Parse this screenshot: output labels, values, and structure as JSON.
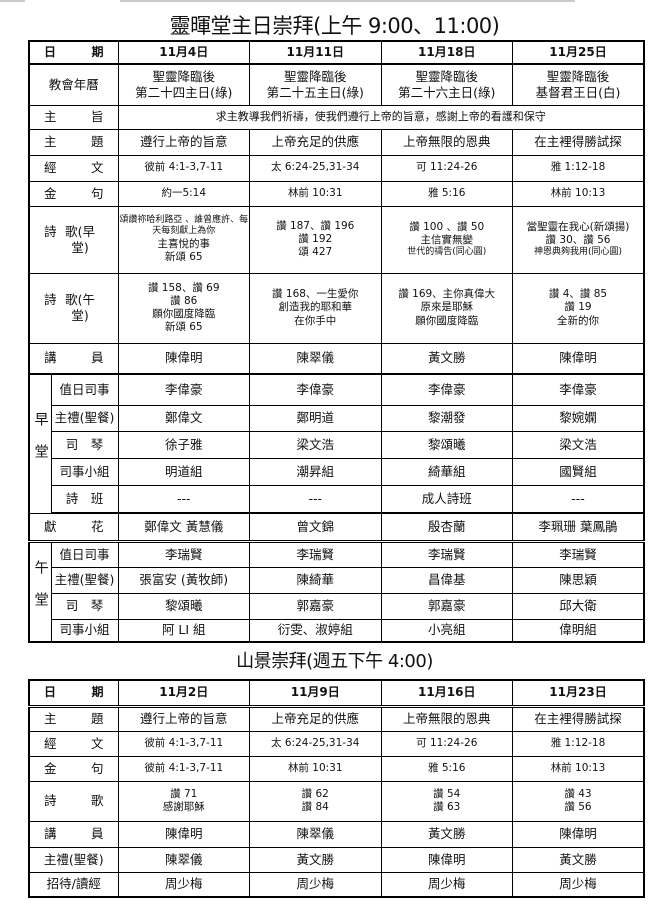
{
  "sunday": {
    "title": "靈暉堂主日崇拜(上午  9:00、11:00)",
    "date_label": [
      "日",
      "期"
    ],
    "dates": [
      "11月4日",
      "11月11日",
      "11月18日",
      "11月25日"
    ],
    "calendar_label": "教會年曆",
    "calendar": [
      [
        "聖靈降臨後",
        "第二十四主日(綠)"
      ],
      [
        "聖靈降臨後",
        "第二十五主日(綠)"
      ],
      [
        "聖靈降臨後",
        "第二十六主日(綠)"
      ],
      [
        "聖靈降臨後",
        "基督君王日(白)"
      ]
    ],
    "purpose_label": [
      "主",
      "旨"
    ],
    "purpose": "求主教導我們祈禱，使我們遵行上帝的旨意，感謝上帝的看護和保守",
    "theme_label": [
      "主",
      "題"
    ],
    "themes": [
      "遵行上帝的旨意",
      "上帝充足的供應",
      "上帝無限的恩典",
      "在主裡得勝試探"
    ],
    "scripture_label": [
      "經",
      "文"
    ],
    "scriptures": [
      "彼前 4:1-3,7-11",
      "太 6:24-25,31-34",
      "可 11:24-26",
      "雅 1:12-18"
    ],
    "verse_label": [
      "金",
      "句"
    ],
    "verses": [
      "約一5:14",
      "林前 10:31",
      "雅 5:16",
      "林前 10:13"
    ],
    "hymn_early_label": [
      "詩",
      "歌(早堂)"
    ],
    "hymns_early": [
      [
        "頌讚祢哈利路亞 、誰曾應許、每天每刻獻上為你",
        "主喜悅的事",
        "新頌 65"
      ],
      [
        "讚 187、讚 196",
        "讚 192",
        "頌 427"
      ],
      [
        "讚 100 、讚 50",
        "主信實無變",
        "世代的禱告(同心圓)"
      ],
      [
        "當聖靈在我心(新頌揚)",
        "讚 30、讚 56",
        "神恩典夠我用(同心圓)"
      ]
    ],
    "hymn_late_label": [
      "詩",
      "歌(午堂)"
    ],
    "hymns_late": [
      [
        "讚 158、讚 69",
        "讚  86",
        "願你國度降臨",
        "新頌 65"
      ],
      [
        "讚 168、一生愛你",
        "創造我的耶和華",
        "在你手中"
      ],
      [
        "讚 169、主你真偉大",
        "原來是耶穌",
        "願你國度降臨"
      ],
      [
        "讚 4、讚 85",
        "讚 19",
        "全新的你"
      ]
    ],
    "speaker_label": [
      "講",
      "員"
    ],
    "speakers": [
      "陳偉明",
      "陳翠儀",
      "黃文勝",
      "陳偉明"
    ],
    "early_group": "早堂",
    "early_rows": [
      {
        "label": "值日司事",
        "values": [
          "李偉豪",
          "李偉豪",
          "李偉豪",
          "李偉豪"
        ]
      },
      {
        "label": "主禮(聖餐)",
        "values": [
          "鄭偉文",
          "鄭明道",
          "黎潮發",
          "黎婉嫻"
        ]
      },
      {
        "label": "司　琴",
        "values": [
          "徐子雅",
          "梁文浩",
          "黎頌曦",
          "梁文浩"
        ]
      },
      {
        "label": "司事小組",
        "values": [
          "明道組",
          "潮昇組",
          "綺華組",
          "國賢組"
        ]
      },
      {
        "label": "詩　班",
        "values": [
          "---",
          "---",
          "成人詩班",
          "---"
        ]
      }
    ],
    "flower_label": [
      "獻",
      "花"
    ],
    "flowers": [
      "鄭偉文 黃慧儀",
      "曾文錦",
      "殷杏蘭",
      "李珮珊 葉鳳鵑"
    ],
    "late_group": "午堂",
    "late_rows": [
      {
        "label": "值日司事",
        "values": [
          "李瑞賢",
          "李瑞賢",
          "李瑞賢",
          "李瑞賢"
        ]
      },
      {
        "label": "主禮(聖餐)",
        "values": [
          "張富安 (黃牧師)",
          "陳綺華",
          "昌偉基",
          "陳思穎"
        ]
      },
      {
        "label": "司　琴",
        "values": [
          "黎頌曦",
          "郭嘉豪",
          "郭嘉豪",
          "邱大衛"
        ]
      },
      {
        "label": "司事小組",
        "values": [
          "阿 LI 組",
          "衍雯、淑婷組",
          "小亮組",
          "偉明組"
        ]
      }
    ]
  },
  "friday": {
    "title": "山景崇拜(週五下午 4:00)",
    "date_label": [
      "日",
      "期"
    ],
    "dates": [
      "11月2日",
      "11月9日",
      "11月16日",
      "11月23日"
    ],
    "theme_label": [
      "主",
      "題"
    ],
    "themes": [
      "遵行上帝的旨意",
      "上帝充足的供應",
      "上帝無限的恩典",
      "在主裡得勝試探"
    ],
    "scripture_label": [
      "經",
      "文"
    ],
    "scriptures": [
      "彼前 4:1-3,7-11",
      "太 6:24-25,31-34",
      "可 11:24-26",
      "雅 1:12-18"
    ],
    "verse_label": [
      "金",
      "句"
    ],
    "verses": [
      "彼前 4:1-3,7-11",
      "林前 10:31",
      "雅 5:16",
      "林前 10:13"
    ],
    "hymn_label": [
      "詩",
      "歌"
    ],
    "hymns": [
      [
        "讚  71",
        "感謝耶穌"
      ],
      [
        "讚  62",
        "讚  84"
      ],
      [
        "讚  54",
        "讚  63"
      ],
      [
        "讚  43",
        "讚  56"
      ]
    ],
    "speaker_label": [
      "講",
      "員"
    ],
    "speakers": [
      "陳偉明",
      "陳翠儀",
      "黃文勝",
      "陳偉明"
    ],
    "officiant_label": "主禮(聖餐)",
    "officiants": [
      "陳翠儀",
      "黃文勝",
      "陳偉明",
      "黃文勝"
    ],
    "usher_label": "招待/讀經",
    "ushers": [
      "周少梅",
      "周少梅",
      "周少梅",
      "周少梅"
    ]
  }
}
